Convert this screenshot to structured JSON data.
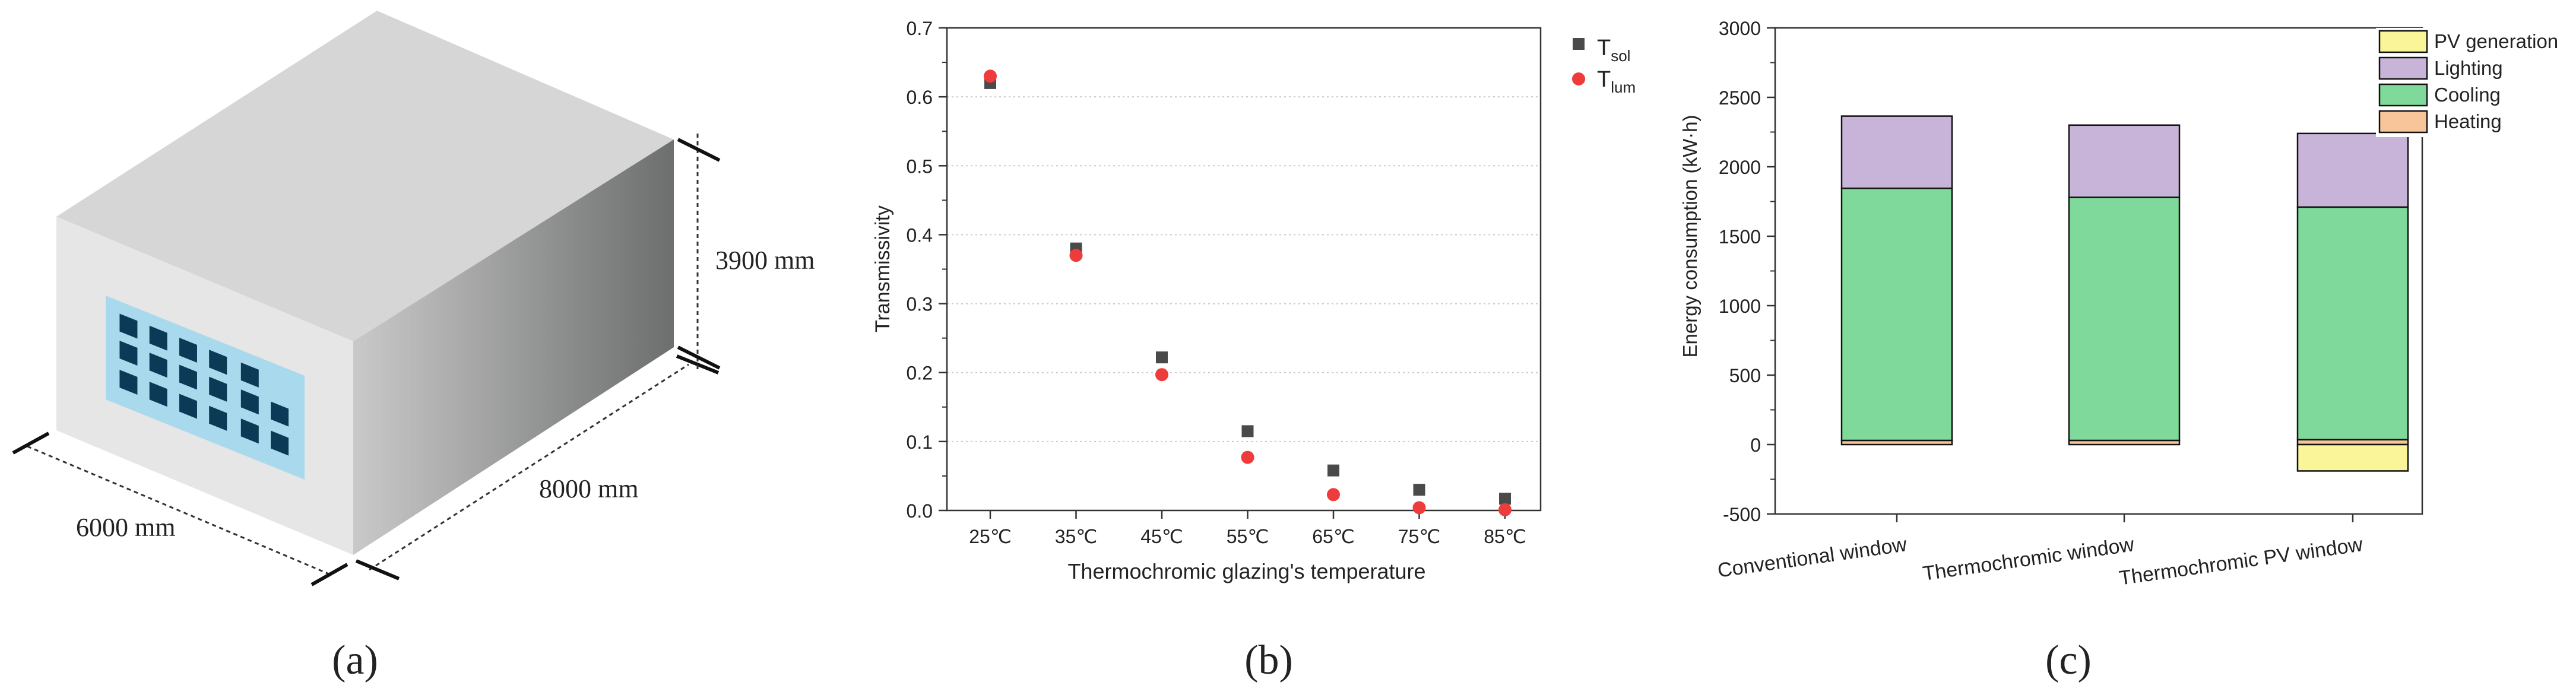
{
  "panel_a": {
    "caption": "(a)",
    "dim_width": "6000 mm",
    "dim_depth": "8000 mm",
    "dim_height": "3900 mm"
  },
  "panel_b": {
    "caption": "(b)"
  },
  "panel_c": {
    "caption": "(c)"
  },
  "chart_data": [
    {
      "type": "scatter",
      "title": "",
      "xlabel": "Thermochromic glazing's temperature",
      "ylabel": "Transmissivity",
      "categories": [
        "25℃",
        "35℃",
        "45℃",
        "55℃",
        "65℃",
        "75℃",
        "85℃"
      ],
      "ylim": [
        0,
        0.7
      ],
      "yticks": [
        "0.0",
        "0.1",
        "0.2",
        "0.3",
        "0.4",
        "0.5",
        "0.6",
        "0.7"
      ],
      "grid": true,
      "legend_placement": "top-right, outside",
      "series": [
        {
          "name": "T",
          "sub": "sol",
          "marker": "square",
          "color": "#4a4a4a",
          "values": [
            0.62,
            0.38,
            0.222,
            0.115,
            0.058,
            0.03,
            0.017
          ]
        },
        {
          "name": "T",
          "sub": "lum",
          "marker": "circle",
          "color": "#ee3b3b",
          "values": [
            0.63,
            0.37,
            0.197,
            0.077,
            0.023,
            0.004,
            0.001
          ]
        }
      ]
    },
    {
      "type": "bar",
      "stacked": true,
      "title": "",
      "xlabel": "",
      "ylabel": "Energy consumption (kW·h)",
      "categories": [
        "Conventional window",
        "Thermochromic window",
        "Thermochromic PV window"
      ],
      "ylim": [
        -500,
        3000
      ],
      "yticks": [
        "-500",
        "0",
        "500",
        "1000",
        "1500",
        "2000",
        "2500",
        "3000"
      ],
      "legend_placement": "top-right, outside",
      "series": [
        {
          "name": "PV generation",
          "color": "#fbf59a",
          "values": [
            0,
            0,
            -190
          ]
        },
        {
          "name": "Lighting",
          "color": "#c8b4d8",
          "values": [
            520,
            520,
            530
          ]
        },
        {
          "name": "Cooling",
          "color": "#7fd99a",
          "values": [
            1815,
            1750,
            1675
          ]
        },
        {
          "name": "Heating",
          "color": "#f8c59b",
          "values": [
            30,
            30,
            35
          ]
        }
      ]
    }
  ]
}
